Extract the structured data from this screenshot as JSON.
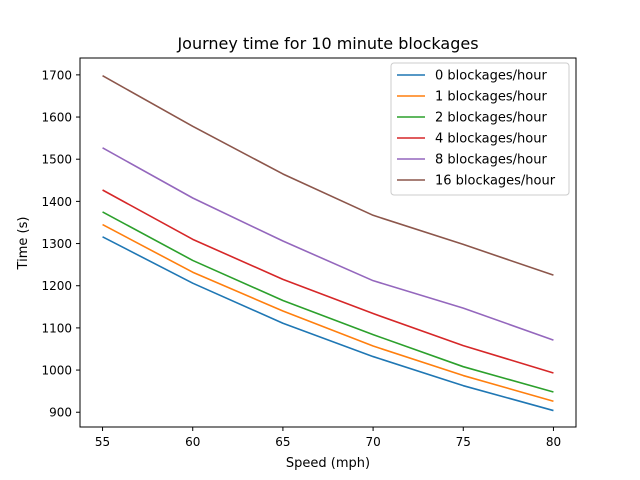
{
  "chart_data": {
    "type": "line",
    "title": "Journey time for 10 minute blockages",
    "xlabel": "Speed (mph)",
    "ylabel": "Time (s)",
    "x": [
      55,
      60,
      65,
      70,
      75,
      80
    ],
    "xticks": [
      "55",
      "60",
      "65",
      "70",
      "75",
      "80"
    ],
    "yticks": [
      "900",
      "1000",
      "1100",
      "1200",
      "1300",
      "1400",
      "1500",
      "1600",
      "1700"
    ],
    "xlim": [
      53.75,
      81.25
    ],
    "ylim": [
      865,
      1740
    ],
    "grid": false,
    "legend_position": "top-right",
    "series": [
      {
        "name": "0 blockages/hour",
        "color": "#1f77b4",
        "values": [
          1316,
          1206,
          1111,
          1032,
          963,
          904
        ]
      },
      {
        "name": "1 blockages/hour",
        "color": "#ff7f0e",
        "values": [
          1345,
          1232,
          1140,
          1057,
          987,
          926
        ]
      },
      {
        "name": "2 blockages/hour",
        "color": "#2ca02c",
        "values": [
          1375,
          1260,
          1165,
          1084,
          1008,
          948
        ]
      },
      {
        "name": "4 blockages/hour",
        "color": "#d62728",
        "values": [
          1427,
          1310,
          1215,
          1134,
          1058,
          993
        ]
      },
      {
        "name": "8 blockages/hour",
        "color": "#9467bd",
        "values": [
          1527,
          1408,
          1306,
          1212,
          1147,
          1071
        ]
      },
      {
        "name": "16 blockages/hour",
        "color": "#8c564b",
        "values": [
          1698,
          1578,
          1465,
          1367,
          1298,
          1225
        ]
      }
    ]
  }
}
